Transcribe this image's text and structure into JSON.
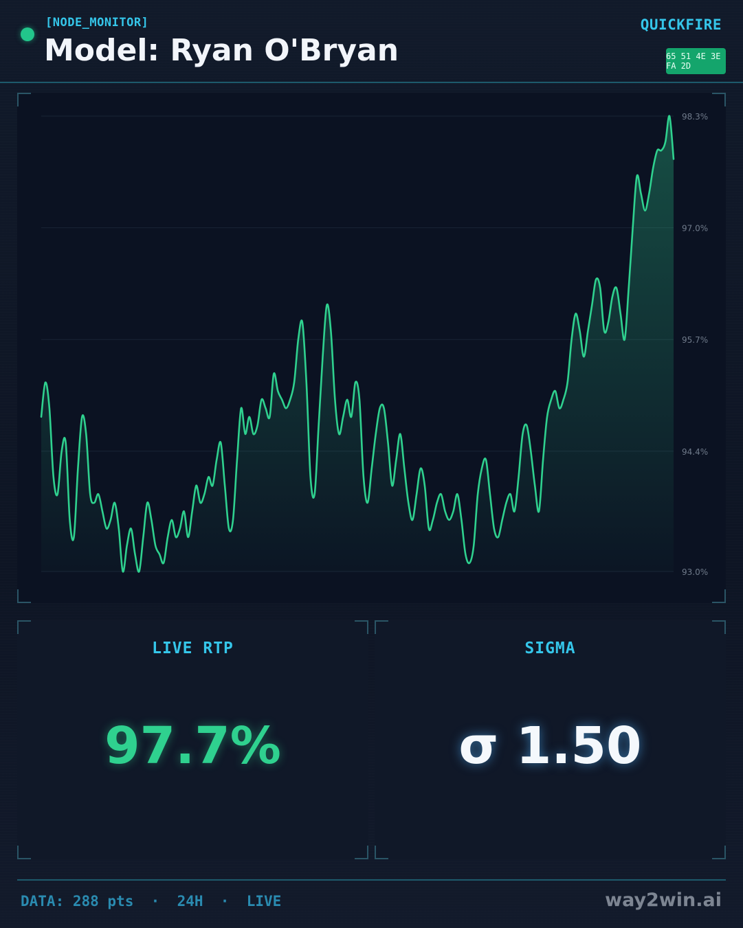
{
  "header": {
    "system_label": "[NODE_MONITOR]",
    "title": "Model: Ryan O'Bryan",
    "brand_tag": "QUICKFIRE",
    "badge": "65 51 4E 3E FA 2D",
    "status_color": "#22c58b"
  },
  "chart_data": {
    "type": "area",
    "title": "",
    "xlabel": "",
    "ylabel": "",
    "ylim": [
      93.0,
      98.3
    ],
    "y_ticks": [
      "98.3%",
      "97.0%",
      "95.7%",
      "94.4%",
      "93.0%"
    ],
    "y_tick_values": [
      98.3,
      97.0,
      95.7,
      94.4,
      93.0
    ],
    "grid": true,
    "color": "#2fd18f",
    "series": [
      {
        "values": [
          94.8,
          95.2,
          94.9,
          94.1,
          93.9,
          94.4,
          94.5,
          93.6,
          93.4,
          94.2,
          94.8,
          94.6,
          93.9,
          93.8,
          93.9,
          93.7,
          93.5,
          93.6,
          93.8,
          93.5,
          93.0,
          93.3,
          93.5,
          93.2,
          93.0,
          93.4,
          93.8,
          93.6,
          93.3,
          93.2,
          93.1,
          93.4,
          93.6,
          93.4,
          93.5,
          93.7,
          93.4,
          93.7,
          94.0,
          93.8,
          93.9,
          94.1,
          94.0,
          94.3,
          94.5,
          94.0,
          93.5,
          93.6,
          94.3,
          94.9,
          94.6,
          94.8,
          94.6,
          94.7,
          95.0,
          94.9,
          94.8,
          95.3,
          95.1,
          95.0,
          94.9,
          95.0,
          95.2,
          95.7,
          95.9,
          95.2,
          94.1,
          93.9,
          94.7,
          95.5,
          96.1,
          95.8,
          95.0,
          94.6,
          94.8,
          95.0,
          94.8,
          95.2,
          95.0,
          94.1,
          93.8,
          94.2,
          94.6,
          94.9,
          94.9,
          94.5,
          94.0,
          94.3,
          94.6,
          94.2,
          93.8,
          93.6,
          93.9,
          94.2,
          94.0,
          93.5,
          93.6,
          93.8,
          93.9,
          93.7,
          93.6,
          93.7,
          93.9,
          93.6,
          93.2,
          93.1,
          93.3,
          93.9,
          94.2,
          94.3,
          93.9,
          93.5,
          93.4,
          93.6,
          93.8,
          93.9,
          93.7,
          94.1,
          94.6,
          94.7,
          94.4,
          94.0,
          93.7,
          94.3,
          94.8,
          95.0,
          95.1,
          94.9,
          95.0,
          95.2,
          95.7,
          96.0,
          95.8,
          95.5,
          95.8,
          96.1,
          96.4,
          96.3,
          95.8,
          95.9,
          96.2,
          96.3,
          96.0,
          95.7,
          96.3,
          97.0,
          97.6,
          97.4,
          97.2,
          97.4,
          97.7,
          97.9,
          97.9,
          98.0,
          98.3,
          97.8
        ]
      }
    ]
  },
  "stats": {
    "live_rtp": {
      "label": "LIVE RTP",
      "value": "97.7%"
    },
    "sigma": {
      "label": "SIGMA",
      "value": "σ 1.50"
    }
  },
  "footer": {
    "meta": "DATA: 288 pts  ·  24H  ·  LIVE",
    "brand": "way2win.ai"
  }
}
